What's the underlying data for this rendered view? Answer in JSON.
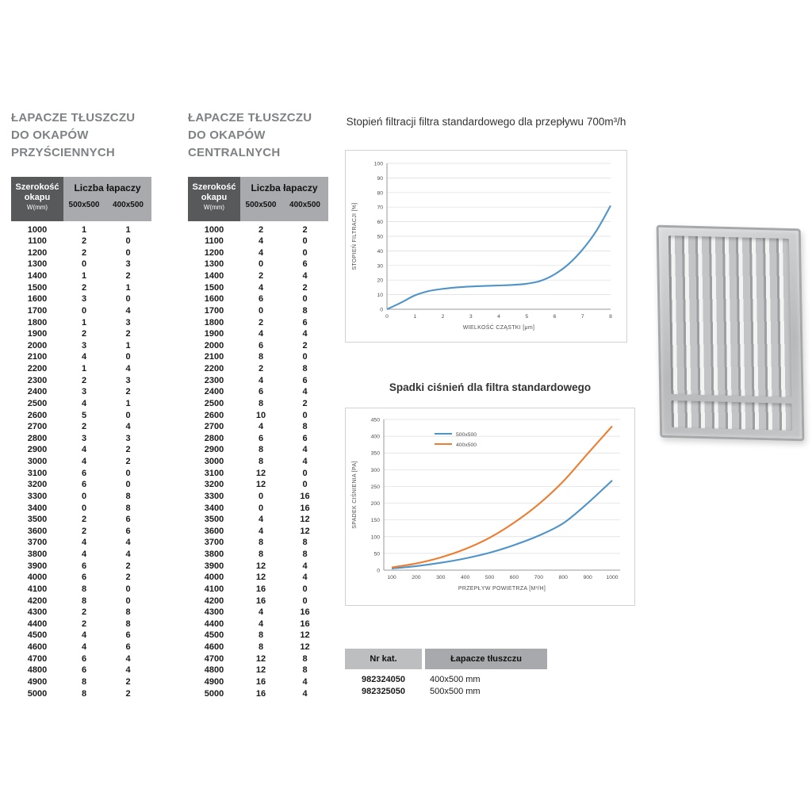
{
  "colors": {
    "heading_gray": "#7f8284",
    "header_dark": "#58595b",
    "header_light": "#a8aaad",
    "series_blue": "#4f94c9",
    "series_orange": "#ed7d31"
  },
  "tables": {
    "wall": {
      "title_lines": [
        "ŁAPACZE TŁUSZCZU",
        "DO OKAPÓW",
        "PRZYŚCIENNYCH"
      ],
      "header": {
        "width_label_1": "Szerokość",
        "width_label_2": "okapu",
        "width_label_3": "W(mm)",
        "count_label": "Liczba łapaczy",
        "col_500": "500x500",
        "col_400": "400x500"
      },
      "rows": [
        [
          1000,
          1,
          1
        ],
        [
          1100,
          2,
          0
        ],
        [
          1200,
          2,
          0
        ],
        [
          1300,
          0,
          3
        ],
        [
          1400,
          1,
          2
        ],
        [
          1500,
          2,
          1
        ],
        [
          1600,
          3,
          0
        ],
        [
          1700,
          0,
          4
        ],
        [
          1800,
          1,
          3
        ],
        [
          1900,
          2,
          2
        ],
        [
          2000,
          3,
          1
        ],
        [
          2100,
          4,
          0
        ],
        [
          2200,
          1,
          4
        ],
        [
          2300,
          2,
          3
        ],
        [
          2400,
          3,
          2
        ],
        [
          2500,
          4,
          1
        ],
        [
          2600,
          5,
          0
        ],
        [
          2700,
          2,
          4
        ],
        [
          2800,
          3,
          3
        ],
        [
          2900,
          4,
          2
        ],
        [
          3000,
          4,
          2
        ],
        [
          3100,
          6,
          0
        ],
        [
          3200,
          6,
          0
        ],
        [
          3300,
          0,
          8
        ],
        [
          3400,
          0,
          8
        ],
        [
          3500,
          2,
          6
        ],
        [
          3600,
          2,
          6
        ],
        [
          3700,
          4,
          4
        ],
        [
          3800,
          4,
          4
        ],
        [
          3900,
          6,
          2
        ],
        [
          4000,
          6,
          2
        ],
        [
          4100,
          8,
          0
        ],
        [
          4200,
          8,
          0
        ],
        [
          4300,
          2,
          8
        ],
        [
          4400,
          2,
          8
        ],
        [
          4500,
          4,
          6
        ],
        [
          4600,
          4,
          6
        ],
        [
          4700,
          6,
          4
        ],
        [
          4800,
          6,
          4
        ],
        [
          4900,
          8,
          2
        ],
        [
          5000,
          8,
          2
        ]
      ]
    },
    "central": {
      "title_lines": [
        "ŁAPACZE TŁUSZCZU",
        "DO OKAPÓW",
        "CENTRALNYCH"
      ],
      "header": {
        "width_label_1": "Szerokość",
        "width_label_2": "okapu",
        "width_label_3": "W(mm)",
        "count_label": "Liczba łapaczy",
        "col_500": "500x500",
        "col_400": "400x500"
      },
      "rows": [
        [
          1000,
          2,
          2
        ],
        [
          1100,
          4,
          0
        ],
        [
          1200,
          4,
          0
        ],
        [
          1300,
          0,
          6
        ],
        [
          1400,
          2,
          4
        ],
        [
          1500,
          4,
          2
        ],
        [
          1600,
          6,
          0
        ],
        [
          1700,
          0,
          8
        ],
        [
          1800,
          2,
          6
        ],
        [
          1900,
          4,
          4
        ],
        [
          2000,
          6,
          2
        ],
        [
          2100,
          8,
          0
        ],
        [
          2200,
          2,
          8
        ],
        [
          2300,
          4,
          6
        ],
        [
          2400,
          6,
          4
        ],
        [
          2500,
          8,
          2
        ],
        [
          2600,
          10,
          0
        ],
        [
          2700,
          4,
          8
        ],
        [
          2800,
          6,
          6
        ],
        [
          2900,
          8,
          4
        ],
        [
          3000,
          8,
          4
        ],
        [
          3100,
          12,
          0
        ],
        [
          3200,
          12,
          0
        ],
        [
          3300,
          0,
          16
        ],
        [
          3400,
          0,
          16
        ],
        [
          3500,
          4,
          12
        ],
        [
          3600,
          4,
          12
        ],
        [
          3700,
          8,
          8
        ],
        [
          3800,
          8,
          8
        ],
        [
          3900,
          12,
          4
        ],
        [
          4000,
          12,
          4
        ],
        [
          4100,
          16,
          0
        ],
        [
          4200,
          16,
          0
        ],
        [
          4300,
          4,
          16
        ],
        [
          4400,
          4,
          16
        ],
        [
          4500,
          8,
          12
        ],
        [
          4600,
          8,
          12
        ],
        [
          4700,
          12,
          8
        ],
        [
          4800,
          12,
          8
        ],
        [
          4900,
          16,
          4
        ],
        [
          5000,
          16,
          4
        ]
      ]
    }
  },
  "chart_data": [
    {
      "type": "line",
      "title": "Stopień filtracji filtra standardowego dla przepływu 700m³/h",
      "xlabel": "WIELKOŚĆ CZĄSTKI [μm]",
      "ylabel": "STOPIEŃ FILTRACJI [%]",
      "xlim": [
        0,
        8
      ],
      "ylim": [
        0,
        100
      ],
      "xtick": 1,
      "ytick": 10,
      "grid": true,
      "legend": false,
      "series": [
        {
          "name": "stopień filtracji",
          "color": "#4f94c9",
          "x": [
            0,
            0.5,
            1,
            1.5,
            2,
            2.5,
            3,
            3.5,
            4,
            4.5,
            5,
            5.5,
            6,
            6.5,
            7,
            7.5,
            8
          ],
          "y": [
            0,
            4.5,
            9.5,
            12.5,
            14,
            15,
            15.6,
            16,
            16.3,
            16.7,
            17.5,
            19.5,
            24,
            31,
            41,
            54,
            71
          ]
        }
      ]
    },
    {
      "type": "line",
      "title": "Spadki ciśnień dla filtra standardowego",
      "xlabel": "PRZEPŁYW POWIETRZA [M³/H]",
      "ylabel": "SPADEK CIŚNIENIA [PA]",
      "xlim": [
        100,
        1000
      ],
      "ylim": [
        0,
        450
      ],
      "xtick": 100,
      "ytick": 50,
      "grid": true,
      "legend": true,
      "legend_position": "top-center",
      "series": [
        {
          "name": "500x500",
          "color": "#4f94c9",
          "x": [
            100,
            200,
            300,
            400,
            500,
            600,
            700,
            800,
            900,
            1000
          ],
          "y": [
            5,
            12,
            22,
            35,
            52,
            75,
            103,
            140,
            200,
            268
          ]
        },
        {
          "name": "400x500",
          "color": "#ed7d31",
          "x": [
            100,
            200,
            300,
            400,
            500,
            600,
            700,
            800,
            900,
            1000
          ],
          "y": [
            8,
            20,
            38,
            63,
            97,
            142,
            197,
            265,
            348,
            430
          ]
        }
      ]
    }
  ],
  "catalog": {
    "headers": [
      "Nr kat.",
      "Łapacze tłuszczu"
    ],
    "rows": [
      [
        "982324050",
        "400x500 mm"
      ],
      [
        "982325050",
        "500x500 mm"
      ]
    ]
  },
  "product_image": {
    "name": "baffle-grease-filter"
  }
}
